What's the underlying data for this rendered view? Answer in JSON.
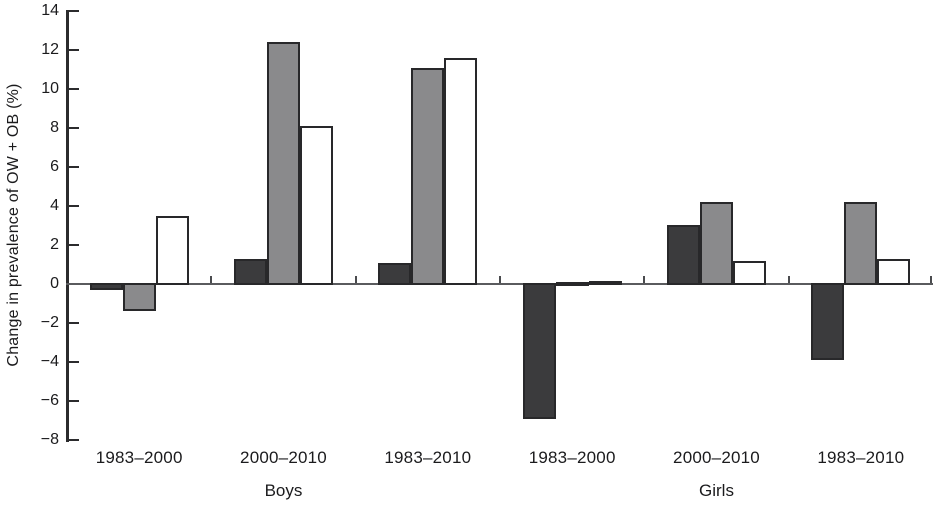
{
  "figure": {
    "background": "#ffffff",
    "text_color": "#1b1b1d"
  },
  "chart_data": {
    "type": "bar",
    "title": "",
    "xlabel": "",
    "ylabel": "Change in prevalence of OW + OB (%)",
    "ylim": [
      -8,
      14
    ],
    "grid": false,
    "legend": "none",
    "yticks": [
      {
        "value": 14,
        "label": "14"
      },
      {
        "value": 12,
        "label": "12"
      },
      {
        "value": 10,
        "label": "10"
      },
      {
        "value": 8,
        "label": "8"
      },
      {
        "value": 6,
        "label": "6"
      },
      {
        "value": 4,
        "label": "4"
      },
      {
        "value": 2,
        "label": "2"
      },
      {
        "value": 0,
        "label": "0"
      },
      {
        "value": -2,
        "label": "−2"
      },
      {
        "value": -4,
        "label": "−4"
      },
      {
        "value": -6,
        "label": "−6"
      },
      {
        "value": -8,
        "label": "−8"
      }
    ],
    "categories": [
      "1983–2000",
      "2000–2010",
      "1983–2010",
      "1983–2000",
      "2000–2010",
      "1983–2010"
    ],
    "group_sections": [
      {
        "label": "Boys",
        "group_indexes": [
          0,
          1,
          2
        ]
      },
      {
        "label": "Girls",
        "group_indexes": [
          3,
          4,
          5
        ]
      }
    ],
    "series": [
      {
        "name": "dark-bar-series",
        "fill": "#3b3b3d",
        "values": [
          -0.3,
          1.3,
          1.1,
          -6.9,
          3.0,
          -3.9
        ]
      },
      {
        "name": "gray-bar-series",
        "fill": "#8a8a8c",
        "values": [
          -1.4,
          12.4,
          11.1,
          0.05,
          4.2,
          4.2
        ]
      },
      {
        "name": "white-bar-series",
        "fill": "#ffffff",
        "values": [
          3.5,
          8.1,
          11.6,
          0.15,
          1.2,
          1.3
        ]
      }
    ],
    "bar_outline_color": "#28282a"
  }
}
